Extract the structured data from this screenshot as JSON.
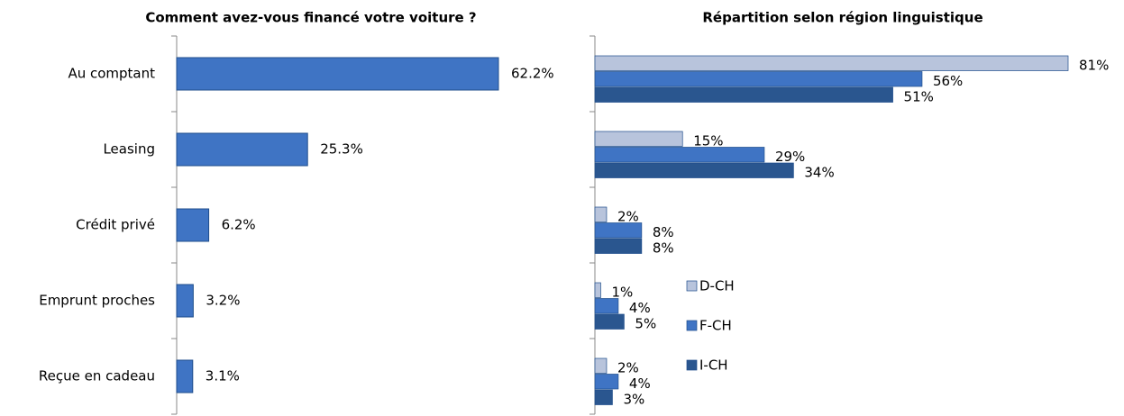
{
  "chart_data": [
    {
      "type": "hbar",
      "title": "Comment avez-vous financé votre voiture ?",
      "categories": [
        "Au comptant",
        "Leasing",
        "Crédit privé",
        "Emprunt proches",
        "Reçue en cadeau"
      ],
      "values": [
        62.2,
        25.3,
        6.2,
        3.2,
        3.1
      ],
      "value_labels": [
        "62.2%",
        "25.3%",
        "6.2%",
        "3.2%",
        "3.1%"
      ],
      "color": "#3f74c4"
    },
    {
      "type": "grouped-hbar",
      "title": "Répartition selon région linguistique",
      "legend": "right",
      "series": [
        {
          "name": "D-CH",
          "color": "#b8c4dc",
          "values": [
            81,
            15,
            2,
            1,
            2
          ],
          "value_labels": [
            "81%",
            "15%",
            "2%",
            "1%",
            "2%"
          ]
        },
        {
          "name": "F-CH",
          "color": "#3f74c4",
          "values": [
            56,
            29,
            8,
            4,
            4
          ],
          "value_labels": [
            "56%",
            "29%",
            "8%",
            "4%",
            "4%"
          ]
        },
        {
          "name": "I-CH",
          "color": "#2a568f",
          "values": [
            51,
            34,
            8,
            5,
            3
          ],
          "value_labels": [
            "51%",
            "34%",
            "8%",
            "5%",
            "3%"
          ]
        }
      ]
    }
  ]
}
